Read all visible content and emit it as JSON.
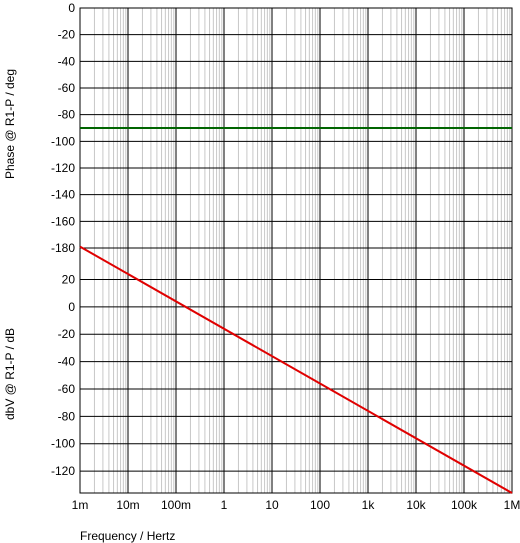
{
  "chart_data": [
    {
      "type": "line",
      "panel": "top",
      "xlabel": "",
      "ylabel": "Phase @ R1-P / deg",
      "x_scale": "log",
      "xlim": [
        0.001,
        1000000
      ],
      "ylim": [
        -180,
        0
      ],
      "y_ticks": [
        0,
        -20,
        -40,
        -60,
        -80,
        -100,
        -120,
        -140,
        -160,
        -180
      ],
      "y_tick_labels": [
        "0",
        "-20",
        "-40",
        "-60",
        "-80",
        "-100",
        "-120",
        "-140",
        "-160",
        "-180"
      ],
      "grid": true,
      "series": [
        {
          "color": "#006400",
          "x": [
            0.001,
            1000000
          ],
          "values": [
            -90,
            -90
          ]
        }
      ]
    },
    {
      "type": "line",
      "panel": "bottom",
      "xlabel": "Frequency / Hertz",
      "ylabel": "dbV @ R1-P / dB",
      "x_scale": "log",
      "xlim": [
        0.001,
        1000000
      ],
      "ylim": [
        -136,
        43
      ],
      "y_ticks": [
        20,
        0,
        -20,
        -40,
        -60,
        -80,
        -100,
        -120
      ],
      "y_tick_labels": [
        "20",
        "0",
        "-20",
        "-40",
        "-60",
        "-80",
        "-100",
        "-120"
      ],
      "x_ticks": [
        0.001,
        0.01,
        0.1,
        1,
        10,
        100,
        1000,
        10000,
        100000,
        1000000
      ],
      "x_tick_labels": [
        "1m",
        "10m",
        "100m",
        "1",
        "10",
        "100",
        "1k",
        "10k",
        "100k",
        "1M"
      ],
      "grid": true,
      "series": [
        {
          "color": "#e00000",
          "x": [
            0.001,
            1000000
          ],
          "values": [
            44,
            -136
          ]
        }
      ]
    }
  ]
}
